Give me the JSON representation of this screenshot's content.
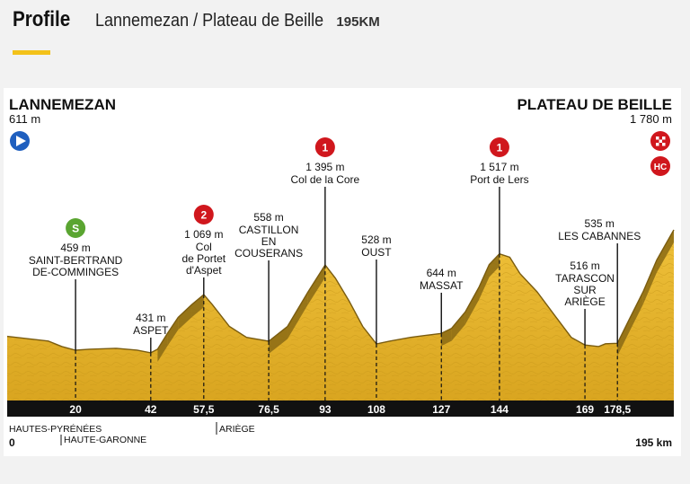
{
  "header": {
    "title": "Profile",
    "route": "Lannemezan / Plateau de Beille",
    "distance": "195KM",
    "accent_color": "#f3c21a"
  },
  "chart_data": {
    "type": "area",
    "x_unit": "km",
    "start": {
      "name": "LANNEMEZAN",
      "altitude": "611 m",
      "icon": "start-arrow-icon"
    },
    "finish": {
      "name": "PLATEAU DE BEILLE",
      "altitude": "1 780 m",
      "icons": [
        "checkered-flag-icon",
        "hc-category-icon"
      ]
    },
    "x_ticks": [
      "20",
      "42",
      "57,5",
      "76,5",
      "93",
      "108",
      "127",
      "144",
      "169",
      "178,5"
    ],
    "x_start_label": "0",
    "x_end_label": "195 km",
    "regions": [
      "HAUTES-PYRÉNÉES",
      "HAUTE-GARONNE",
      "ARIÈGE"
    ],
    "elevation_profile": {
      "km": [
        0,
        12,
        16,
        20,
        24,
        32,
        38,
        42,
        44,
        47,
        50,
        54,
        57.5,
        60,
        65,
        70,
        76.5,
        82,
        88,
        93,
        96,
        100,
        104,
        108,
        112,
        118,
        122,
        127,
        130,
        134,
        138,
        141,
        144,
        147,
        150,
        155,
        160,
        165,
        169,
        173,
        175,
        178.5,
        182,
        186,
        190,
        195
      ],
      "altitude_m": [
        611,
        560,
        500,
        459,
        470,
        480,
        460,
        431,
        470,
        650,
        820,
        960,
        1069,
        960,
        720,
        600,
        558,
        720,
        1100,
        1395,
        1250,
        1000,
        720,
        528,
        560,
        600,
        620,
        644,
        700,
        880,
        1150,
        1400,
        1517,
        1480,
        1300,
        1100,
        850,
        600,
        516,
        500,
        530,
        535,
        800,
        1100,
        1450,
        1780
      ]
    },
    "annotations": [
      {
        "km": "20",
        "altitude": "459 m",
        "name": "SAINT-BERTRAND DE-COMMINGES",
        "lines": [
          "SAINT-BERTRAND",
          "DE-COMMINGES"
        ],
        "badge": "S",
        "badge_color": "#5aa531"
      },
      {
        "km": "42",
        "altitude": "431 m",
        "name": "ASPET",
        "lines": [
          "ASPET"
        ]
      },
      {
        "km": "57,5",
        "altitude": "1 069 m",
        "name": "Col de Portet d'Aspet",
        "lines": [
          "Col",
          "de Portet",
          "d'Aspet"
        ],
        "badge": "2",
        "badge_color": "#d0171d"
      },
      {
        "km": "76,5",
        "altitude": "558 m",
        "name": "CASTILLON EN COUSERANS",
        "lines": [
          "CASTILLON",
          "EN",
          "COUSERANS"
        ]
      },
      {
        "km": "93",
        "altitude": "1 395 m",
        "name": "Col de la Core",
        "lines": [
          "Col de la Core"
        ],
        "badge": "1",
        "badge_color": "#d0171d"
      },
      {
        "km": "108",
        "altitude": "528 m",
        "name": "OUST",
        "lines": [
          "OUST"
        ]
      },
      {
        "km": "127",
        "altitude": "644 m",
        "name": "MASSAT",
        "lines": [
          "MASSAT"
        ]
      },
      {
        "km": "144",
        "altitude": "1 517 m",
        "name": "Port de Lers",
        "lines": [
          "Port de Lers"
        ],
        "badge": "1",
        "badge_color": "#d0171d"
      },
      {
        "km": "169",
        "altitude": "516 m",
        "name": "TARASCON SUR ARIÈGE",
        "lines": [
          "TARASCON",
          "SUR",
          "ARIÈGE"
        ]
      },
      {
        "km": "178,5",
        "altitude": "535 m",
        "name": "LES CABANNES",
        "lines": [
          "LES CABANNES"
        ]
      }
    ],
    "fill_color": "#e6b52d",
    "climb_color": "#8a6a14",
    "axis_bar_color": "#111111"
  }
}
